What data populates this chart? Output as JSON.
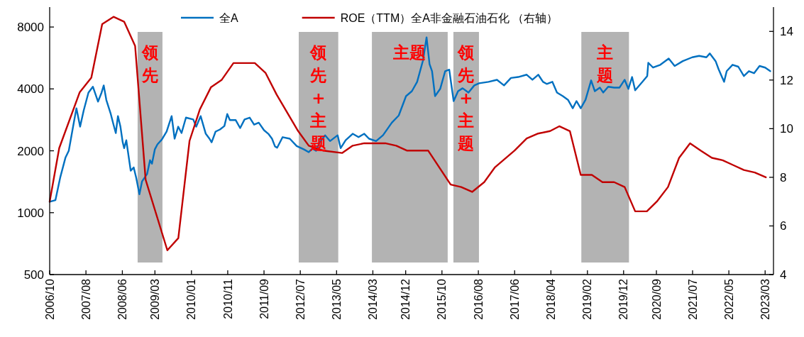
{
  "chart_data": {
    "type": "line",
    "legend": "top",
    "log": "y",
    "marker": "none",
    "line_style": "solid",
    "xlim": [
      "2006-10-01",
      "2023-05-10"
    ],
    "xticks": [
      {
        "value": "2006-10",
        "label": "2006/10"
      },
      {
        "value": "2007-08",
        "label": "2007/08"
      },
      {
        "value": "2008-06",
        "label": "2008/06"
      },
      {
        "value": "2009-03",
        "label": "2009/03"
      },
      {
        "value": "2010-01",
        "label": "2010/01"
      },
      {
        "value": "2010-11",
        "label": "2010/11"
      },
      {
        "value": "2011-09",
        "label": "2011/09"
      },
      {
        "value": "2012-07",
        "label": "2012/07"
      },
      {
        "value": "2013-05",
        "label": "2013/05"
      },
      {
        "value": "2014-03",
        "label": "2014/03"
      },
      {
        "value": "2014-12",
        "label": "2014/12"
      },
      {
        "value": "2015-10",
        "label": "2015/10"
      },
      {
        "value": "2016-08",
        "label": "2016/08"
      },
      {
        "value": "2017-06",
        "label": "2017/06"
      },
      {
        "value": "2018-04",
        "label": "2018/04"
      },
      {
        "value": "2019-02",
        "label": "2019/02"
      },
      {
        "value": "2019-12",
        "label": "2019/12"
      },
      {
        "value": "2020-09",
        "label": "2020/09"
      },
      {
        "value": "2021-07",
        "label": "2021/07"
      },
      {
        "value": "2022-05",
        "label": "2022/05"
      },
      {
        "value": "2023-03",
        "label": "2023/03"
      }
    ],
    "ylim": [
      500,
      10000
    ],
    "yticks": [
      500,
      1000,
      2000,
      4000,
      8000
    ],
    "y2lim": [
      4,
      15
    ],
    "y2ticks": [
      4,
      6,
      8,
      10,
      12,
      14
    ],
    "series": [
      {
        "name": "全A",
        "color": "#0070c0",
        "axis": "y",
        "x": [
          "2006-10-01",
          "2006-11-18",
          "2006-12-28",
          "2007-02-10",
          "2007-03-10",
          "2007-04-13",
          "2007-05-13",
          "2007-06-13",
          "2007-07-13",
          "2007-08-22",
          "2007-09-28",
          "2007-11-10",
          "2007-12-10",
          "2007-12-28",
          "2008-01-19",
          "2008-02-25",
          "2008-03-19",
          "2008-04-07",
          "2008-04-25",
          "2008-05-16",
          "2008-06-04",
          "2008-06-16",
          "2008-07-04",
          "2008-08-10",
          "2008-09-04",
          "2008-09-25",
          "2008-10-22",
          "2008-11-13",
          "2008-12-25",
          "2009-01-19",
          "2009-02-04",
          "2009-02-28",
          "2009-03-22",
          "2009-04-28",
          "2009-06-07",
          "2009-07-19",
          "2009-08-13",
          "2009-09-12",
          "2009-10-10",
          "2009-11-16",
          "2010-01-16",
          "2010-02-10",
          "2010-03-19",
          "2010-05-01",
          "2010-06-01",
          "2010-06-19",
          "2010-07-22",
          "2010-08-28",
          "2010-10-04",
          "2010-10-28",
          "2010-11-19",
          "2011-01-07",
          "2011-02-13",
          "2011-03-22",
          "2011-05-04",
          "2011-06-10",
          "2011-07-19",
          "2011-09-01",
          "2011-10-07",
          "2011-11-07",
          "2011-12-02",
          "2011-12-20",
          "2012-02-04",
          "2012-04-04",
          "2012-06-01",
          "2012-08-01",
          "2012-09-10",
          "2012-10-10",
          "2012-11-10",
          "2012-12-10",
          "2013-01-25",
          "2013-03-07",
          "2013-05-10",
          "2013-06-04",
          "2013-07-16",
          "2013-09-13",
          "2013-11-01",
          "2013-12-19",
          "2014-01-28",
          "2014-03-28",
          "2014-05-25",
          "2014-08-07",
          "2014-10-04",
          "2014-12-04",
          "2015-01-22",
          "2015-03-07",
          "2015-04-25",
          "2015-05-25",
          "2015-06-19",
          "2015-07-10",
          "2015-08-04",
          "2015-09-16",
          "2015-10-28",
          "2015-12-01",
          "2016-01-07",
          "2016-02-13",
          "2016-03-22",
          "2016-05-10",
          "2016-06-28",
          "2016-08-07",
          "2016-10-25",
          "2017-01-04",
          "2017-03-04",
          "2017-05-01",
          "2017-07-01",
          "2017-09-10",
          "2017-10-28",
          "2017-12-16",
          "2018-01-25",
          "2018-02-25",
          "2018-04-13",
          "2018-05-22",
          "2018-07-10",
          "2018-08-22",
          "2018-10-01",
          "2018-11-01",
          "2018-12-07",
          "2019-01-16",
          "2019-03-04",
          "2019-04-04",
          "2019-05-16",
          "2019-06-13",
          "2019-07-25",
          "2019-09-13",
          "2019-10-28",
          "2019-12-10",
          "2020-01-10",
          "2020-02-10",
          "2020-03-07",
          "2020-05-07",
          "2020-06-16",
          "2020-06-25",
          "2020-08-04",
          "2020-10-04",
          "2020-12-13",
          "2021-02-01",
          "2021-04-10",
          "2021-06-28",
          "2021-08-25",
          "2021-10-25",
          "2021-11-22",
          "2022-01-10",
          "2022-02-04",
          "2022-03-22",
          "2022-04-13",
          "2022-06-01",
          "2022-07-19",
          "2022-09-04",
          "2022-10-16",
          "2022-11-28",
          "2023-01-13",
          "2023-03-01",
          "2023-04-13"
        ],
        "values": [
          1130,
          1150,
          1480,
          1850,
          2000,
          2580,
          3220,
          2620,
          3140,
          3840,
          4100,
          3470,
          3840,
          4160,
          3530,
          3020,
          2680,
          2440,
          2950,
          2620,
          2200,
          2060,
          2250,
          1600,
          1660,
          1480,
          1230,
          1420,
          1540,
          1800,
          1730,
          2030,
          2150,
          2270,
          2480,
          2950,
          2290,
          2620,
          2440,
          2900,
          2840,
          2620,
          2950,
          2420,
          2290,
          2200,
          2480,
          2540,
          2640,
          3020,
          2820,
          2820,
          2580,
          2840,
          2900,
          2680,
          2740,
          2520,
          2420,
          2290,
          2100,
          2070,
          2330,
          2290,
          2110,
          2030,
          1970,
          2050,
          2000,
          2200,
          2380,
          2230,
          2380,
          2060,
          2250,
          2420,
          2330,
          2420,
          2290,
          2230,
          2380,
          2740,
          2970,
          3690,
          3900,
          4330,
          5500,
          7120,
          5280,
          4880,
          3690,
          4000,
          4880,
          4960,
          3490,
          3900,
          4030,
          3840,
          4160,
          4260,
          4330,
          4430,
          4160,
          4520,
          4570,
          4690,
          4430,
          4690,
          4330,
          4230,
          4330,
          3840,
          3690,
          3540,
          3220,
          3490,
          3220,
          3540,
          4400,
          3900,
          4060,
          3840,
          4100,
          4060,
          4060,
          4430,
          4000,
          4570,
          3940,
          4330,
          4620,
          5360,
          5080,
          5240,
          5620,
          5170,
          5460,
          5700,
          5790,
          5700,
          5950,
          5460,
          4990,
          4330,
          4880,
          5240,
          5130,
          4620,
          4880,
          4770,
          5170,
          5080,
          4880
        ]
      },
      {
        "name": "ROE（TTM）全A非金融石油石化 （右轴）",
        "color": "#c00000",
        "axis": "y2",
        "x": [
          "2006-10-01",
          "2006-12-20",
          "2007-06-10",
          "2007-09-15",
          "2007-12-15",
          "2008-03-19",
          "2008-06-16",
          "2008-09-16",
          "2008-12-13",
          "2009-06-13",
          "2009-09-13",
          "2009-12-16",
          "2010-03-13",
          "2010-06-13",
          "2010-09-10",
          "2010-12-19",
          "2011-06-16",
          "2011-09-13",
          "2011-12-16",
          "2012-06-13",
          "2012-09-10",
          "2013-01-07",
          "2013-06-16",
          "2013-09-13",
          "2013-12-19",
          "2014-06-13",
          "2014-09-13",
          "2014-12-10",
          "2015-03-07",
          "2015-06-07",
          "2015-12-13",
          "2016-03-10",
          "2016-06-10",
          "2016-09-19",
          "2016-12-16",
          "2017-06-01",
          "2017-09-10",
          "2017-12-15",
          "2018-03-25",
          "2018-06-10",
          "2018-09-07",
          "2018-12-07",
          "2019-03-10",
          "2019-06-07",
          "2019-09-13",
          "2019-12-10",
          "2020-03-07",
          "2020-06-13",
          "2020-09-04",
          "2020-12-07",
          "2021-03-10",
          "2021-06-10",
          "2021-09-07",
          "2021-12-10",
          "2022-03-10",
          "2022-06-07",
          "2022-09-04",
          "2022-12-04",
          "2023-03-07"
        ],
        "values": [
          7.0,
          9.2,
          11.5,
          12.1,
          14.3,
          14.6,
          14.4,
          13.4,
          7.9,
          5.0,
          5.5,
          9.5,
          10.8,
          11.7,
          12.0,
          12.7,
          12.7,
          12.3,
          11.4,
          9.9,
          9.3,
          9.1,
          9.0,
          9.3,
          9.4,
          9.4,
          9.3,
          9.1,
          9.1,
          9.1,
          7.7,
          7.6,
          7.4,
          7.8,
          8.4,
          9.1,
          9.6,
          9.8,
          9.9,
          10.1,
          9.9,
          8.1,
          8.1,
          7.8,
          7.8,
          7.6,
          6.6,
          6.6,
          7.0,
          7.6,
          8.8,
          9.4,
          9.1,
          8.8,
          8.7,
          8.5,
          8.3,
          8.2,
          8.0
        ]
      }
    ],
    "bands": [
      {
        "axis": "x",
        "from": "2008-10-07",
        "to": "2009-05-03",
        "label": "领先",
        "color": "#b3b3b3"
      },
      {
        "axis": "x",
        "from": "2012-06-18",
        "to": "2013-05-15",
        "label": "领先+主题",
        "color": "#b3b3b3"
      },
      {
        "axis": "x",
        "from": "2014-02-21",
        "to": "2015-11-18",
        "label": "主题",
        "color": "#b3b3b3"
      },
      {
        "axis": "x",
        "from": "2016-01-05",
        "to": "2016-08-06",
        "label": "领先+主题",
        "color": "#b3b3b3"
      },
      {
        "axis": "x",
        "from": "2018-12-12",
        "to": "2020-01-15",
        "label": "主题",
        "color": "#b3b3b3"
      }
    ]
  }
}
